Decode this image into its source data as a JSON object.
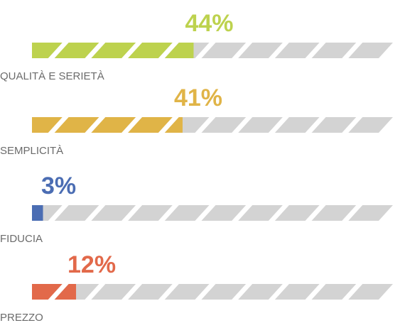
{
  "chart_data": {
    "type": "bar",
    "categories": [
      "QUALITÀ E SERIETÀ",
      "SEMPLICITÀ",
      "FIDUCIA",
      "PREZZO"
    ],
    "values": [
      44,
      41,
      3,
      12
    ],
    "value_labels": [
      "44%",
      "41%",
      "3%",
      "12%"
    ],
    "colors": [
      "#bdd24e",
      "#e0b447",
      "#4b6db3",
      "#e2694a"
    ],
    "track_color": "#d3d3d3",
    "xlim": [
      0,
      100
    ]
  }
}
